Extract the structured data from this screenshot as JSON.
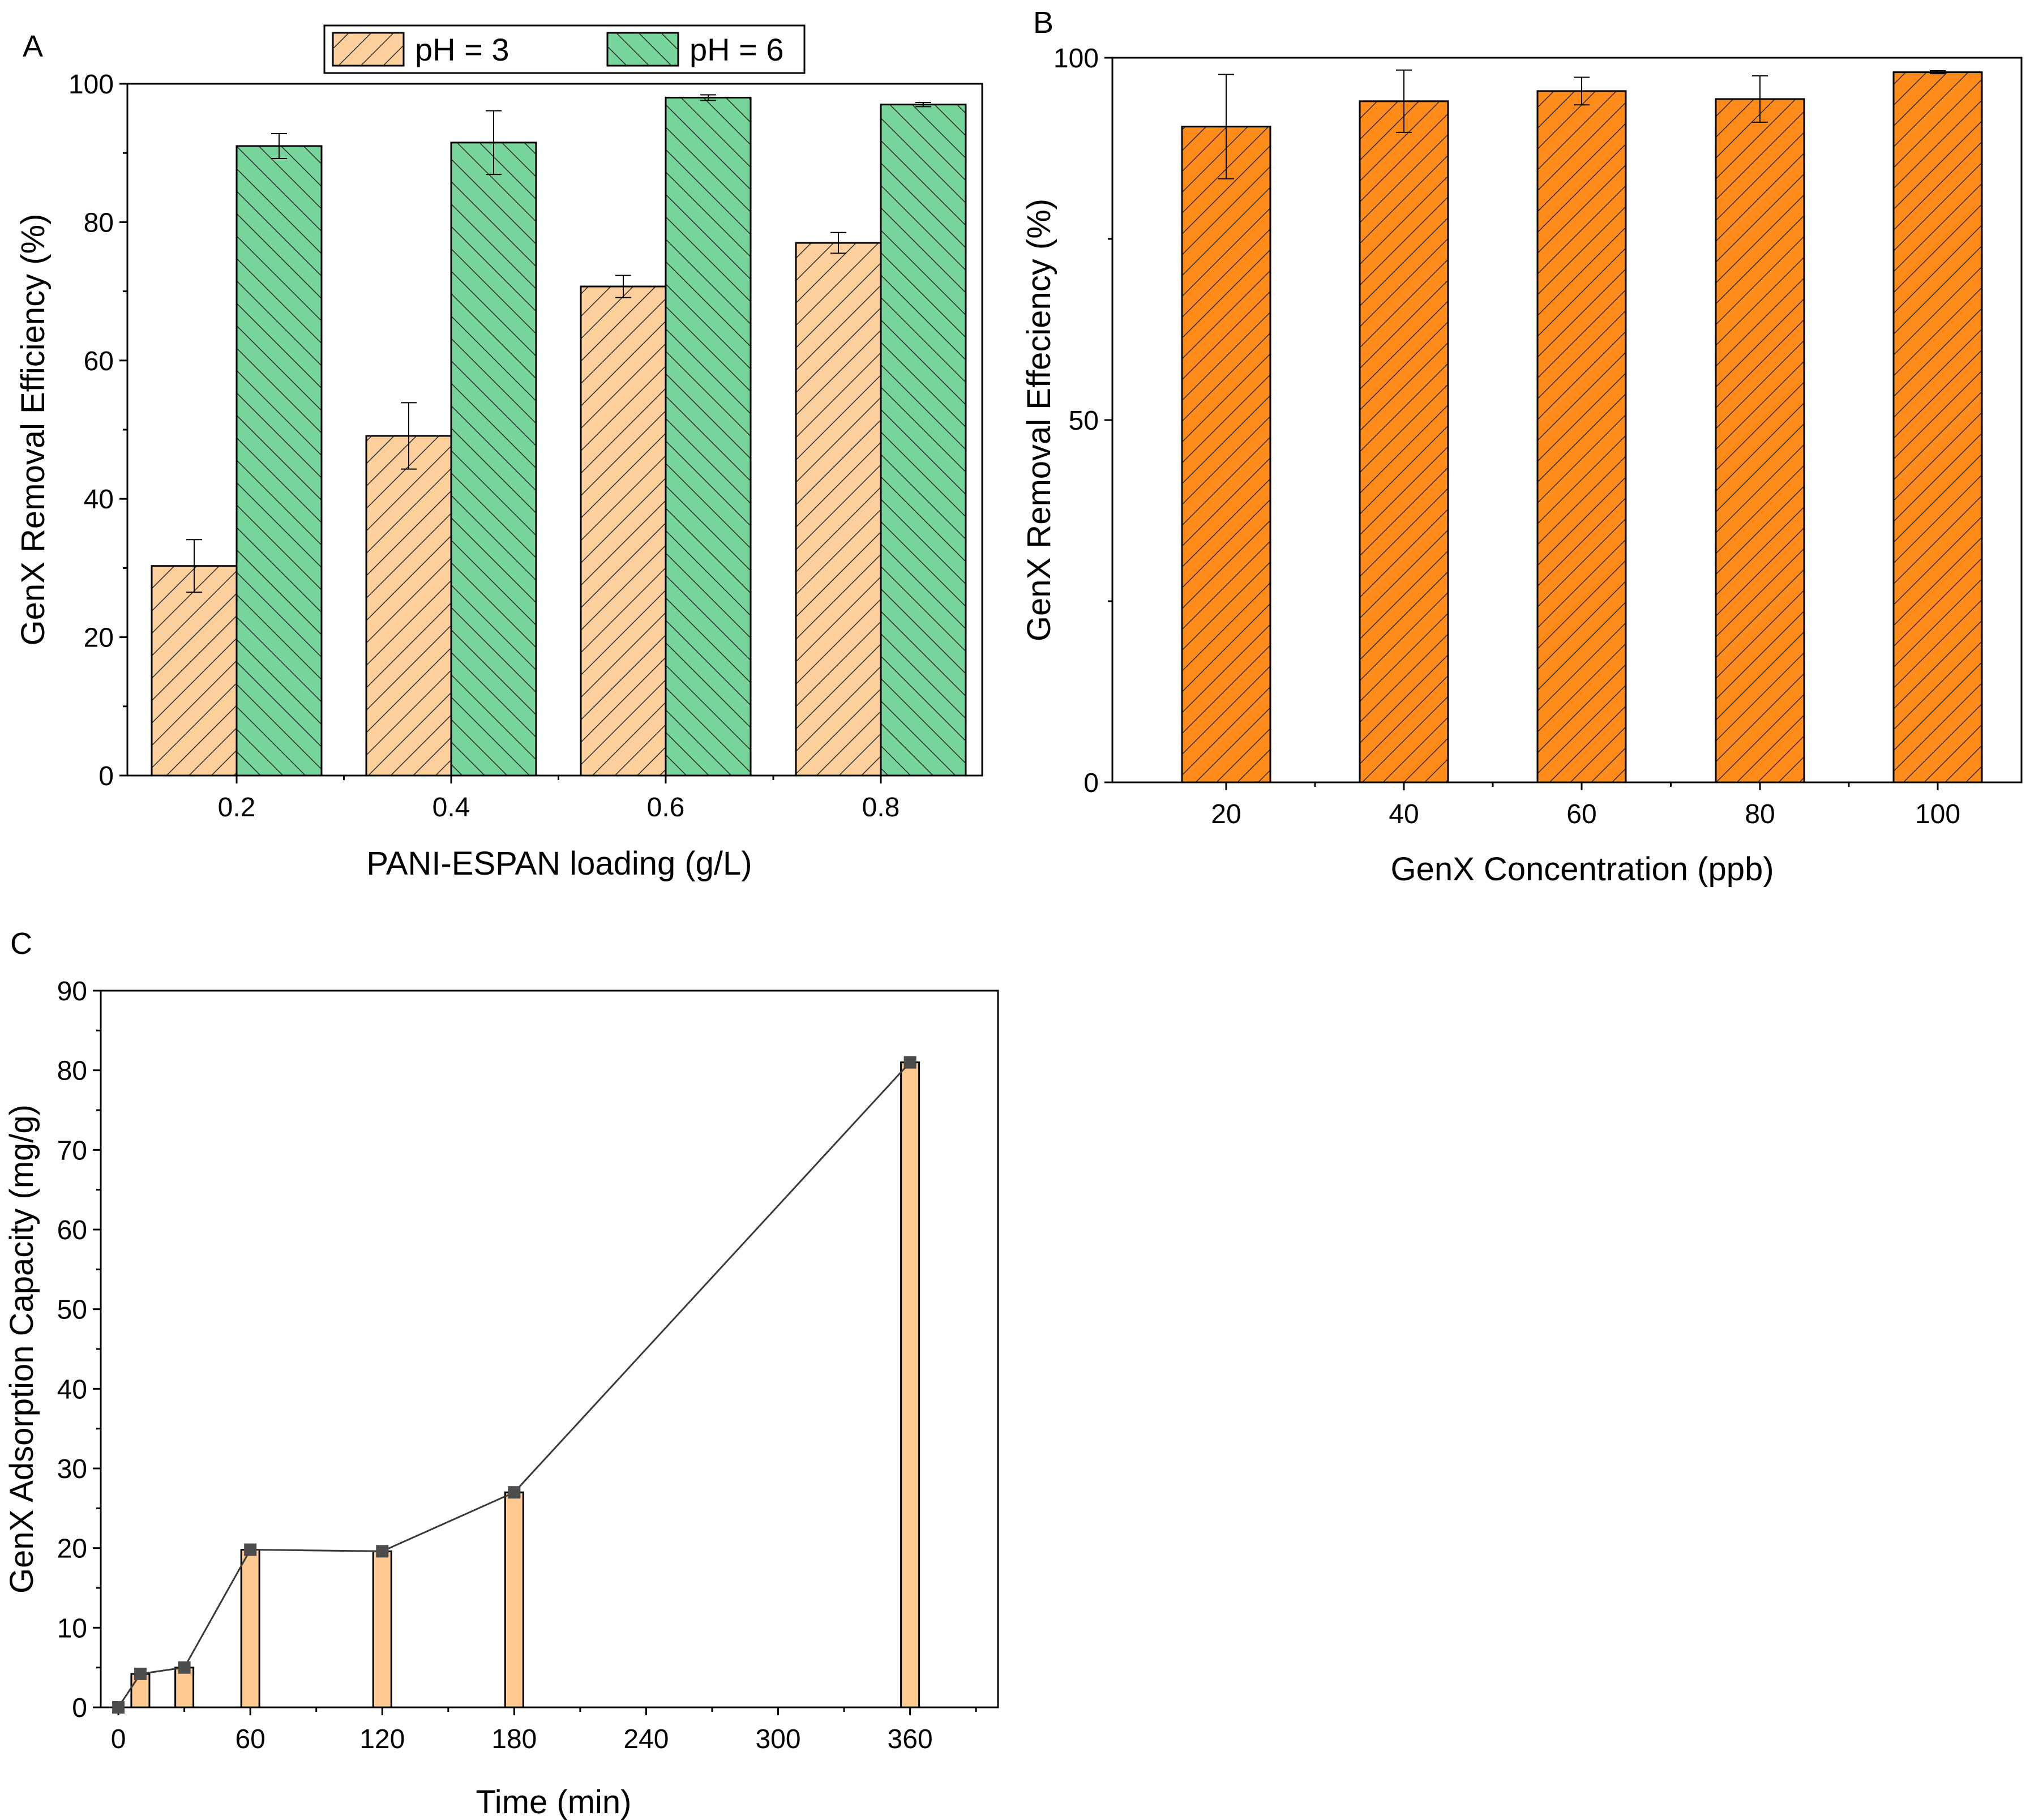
{
  "colors": {
    "ph3_fill": "#fdcf9c",
    "ph6_fill": "#77d49b",
    "orange_fill": "#ff8c1a",
    "capacity_fill": "#ffc98f",
    "marker": "#4d4d4d",
    "hatch": "#2b2b2b"
  },
  "chart_data": [
    {
      "panel_label": "A",
      "type": "bar",
      "xlabel": "PANI-ESPAN loading (g/L)",
      "ylabel": "GenX Removal Efficiency (%)",
      "categories": [
        "0.2",
        "0.4",
        "0.6",
        "0.8"
      ],
      "ylim": [
        0,
        100
      ],
      "yticks": [
        "0",
        "20",
        "40",
        "60",
        "80",
        "100"
      ],
      "legend_position": "top-center",
      "series": [
        {
          "name": "pH = 3",
          "values": [
            30.3,
            49.1,
            70.7,
            77.0
          ],
          "errors": [
            3.8,
            4.8,
            1.6,
            1.5
          ]
        },
        {
          "name": "pH = 6",
          "values": [
            91.0,
            91.5,
            98.0,
            97.0
          ],
          "errors": [
            1.8,
            4.6,
            0.4,
            0.3
          ]
        }
      ]
    },
    {
      "panel_label": "B",
      "type": "bar",
      "xlabel": "GenX Concentration (ppb)",
      "ylabel": "GenX Removal Effeciency (%)",
      "categories": [
        "20",
        "40",
        "60",
        "80",
        "100"
      ],
      "ylim": [
        0,
        100
      ],
      "yticks": [
        "0",
        "50",
        "100"
      ],
      "series": [
        {
          "name": "Removal efficiency",
          "values": [
            90.5,
            94.0,
            95.4,
            94.3,
            98.0
          ],
          "errors": [
            7.2,
            4.3,
            1.9,
            3.2,
            0.2
          ]
        }
      ]
    },
    {
      "panel_label": "C",
      "type": "bar",
      "xlabel": "Time (min)",
      "ylabel": "GenX Adsorption Capacity (mg/g)",
      "x": [
        0,
        10,
        30,
        60,
        120,
        180,
        360
      ],
      "values": [
        0,
        4.2,
        5.0,
        19.8,
        19.6,
        27.0,
        81.0
      ],
      "xlim": [
        -8,
        400
      ],
      "ylim": [
        0,
        90
      ],
      "xticks": [
        "0",
        "60",
        "120",
        "180",
        "240",
        "300",
        "360"
      ],
      "yticks": [
        "0",
        "10",
        "20",
        "30",
        "40",
        "50",
        "60",
        "70",
        "80",
        "90"
      ],
      "overlay": "line-with-square-markers"
    }
  ]
}
